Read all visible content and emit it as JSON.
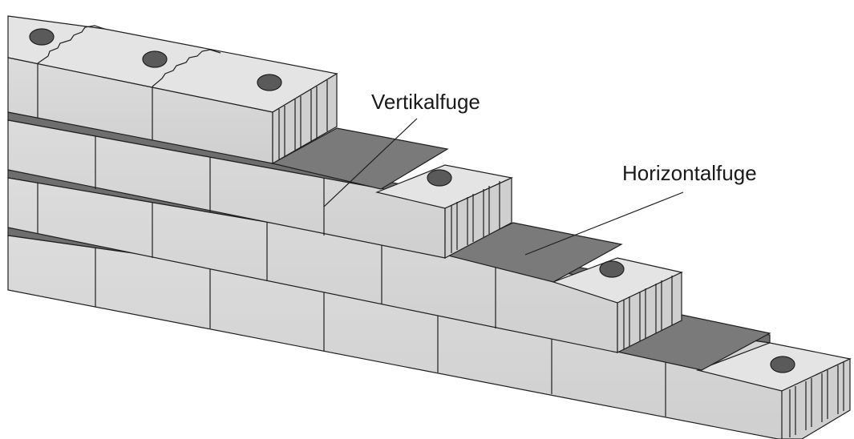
{
  "labels": {
    "vertical_joint": "Vertikalfuge",
    "horizontal_joint": "Horizontalfuge"
  },
  "colors": {
    "block_front": "#d6d6d6",
    "block_top": "#e6e6e6",
    "mortar_bed": "#7a7a7a",
    "mortar_edge": "#5e5e5e",
    "outline": "#1f1f1f",
    "hole": "#5a5a5a"
  }
}
